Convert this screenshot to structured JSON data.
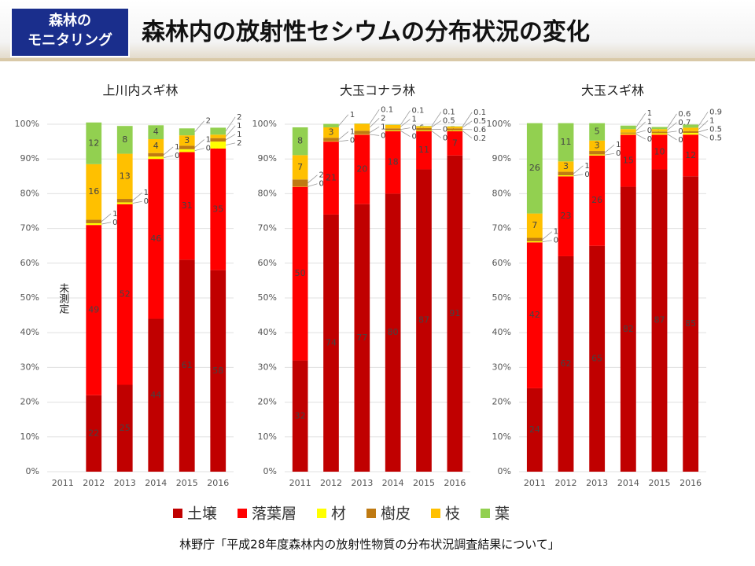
{
  "header": {
    "badge": [
      "森林の",
      "モニタリング"
    ],
    "title": "森林内の放射性セシウムの分布状況の変化"
  },
  "source": "林野庁「平成28年度森林内の放射性物質の分布状況調査結果について」",
  "chart_data": [
    {
      "type": "bar",
      "stacked": true,
      "title": "上川内スギ林",
      "annotation": "未測定",
      "categories": [
        "2011",
        "2012",
        "2013",
        "2014",
        "2015",
        "2016"
      ],
      "ylim": [
        0,
        100
      ],
      "yticks": [
        {
          "value": 0,
          "label": "0%"
        },
        {
          "value": 10,
          "label": "10%"
        },
        {
          "value": 20,
          "label": "20%"
        },
        {
          "value": 30,
          "label": "30%"
        },
        {
          "value": 40,
          "label": "40%"
        },
        {
          "value": 50,
          "label": "50%"
        },
        {
          "value": 60,
          "label": "60%"
        },
        {
          "value": 70,
          "label": "70%"
        },
        {
          "value": 80,
          "label": "80%"
        },
        {
          "value": 90,
          "label": "90%"
        },
        {
          "value": 100,
          "label": "100%"
        }
      ],
      "series": [
        {
          "name": "土壌",
          "color": "#c00000",
          "values": [
            null,
            22,
            25,
            44,
            61,
            58
          ]
        },
        {
          "name": "落葉層",
          "color": "#ff0000",
          "values": [
            null,
            49,
            52,
            46,
            31,
            35
          ]
        },
        {
          "name": "材",
          "color": "#ffff00",
          "values": [
            null,
            0.5,
            0.5,
            0.7,
            0.8,
            2
          ]
        },
        {
          "name": "樹皮",
          "color": "#bf7a12",
          "values": [
            null,
            1,
            1,
            1,
            1,
            1
          ]
        },
        {
          "name": "枝",
          "color": "#ffc000",
          "values": [
            null,
            16,
            13,
            4,
            3,
            1
          ]
        },
        {
          "name": "葉",
          "color": "#92d050",
          "values": [
            null,
            12,
            8,
            4,
            2,
            2
          ]
        }
      ]
    },
    {
      "type": "bar",
      "stacked": true,
      "title": "大玉コナラ林",
      "categories": [
        "2011",
        "2012",
        "2013",
        "2014",
        "2015",
        "2016"
      ],
      "ylim": [
        0,
        100
      ],
      "yticks": [
        {
          "value": 0,
          "label": "0%"
        },
        {
          "value": 10,
          "label": "10%"
        },
        {
          "value": 20,
          "label": "20%"
        },
        {
          "value": 30,
          "label": "30%"
        },
        {
          "value": 40,
          "label": "40%"
        },
        {
          "value": 50,
          "label": "50%"
        },
        {
          "value": 60,
          "label": "60%"
        },
        {
          "value": 70,
          "label": "70%"
        },
        {
          "value": 80,
          "label": "80%"
        },
        {
          "value": 90,
          "label": "90%"
        },
        {
          "value": 100,
          "label": "100%"
        }
      ],
      "series": [
        {
          "name": "土壌",
          "color": "#c00000",
          "values": [
            32,
            74,
            77,
            80,
            87,
            91
          ]
        },
        {
          "name": "落葉層",
          "color": "#ff0000",
          "values": [
            50,
            21,
            20,
            18,
            11,
            7
          ]
        },
        {
          "name": "材",
          "color": "#ffff00",
          "values": [
            0.1,
            0.1,
            0.1,
            0.2,
            0.2,
            0.2
          ]
        },
        {
          "name": "樹皮",
          "color": "#bf7a12",
          "values": [
            2,
            1,
            1,
            0.6,
            0.7,
            0.6
          ]
        },
        {
          "name": "枝",
          "color": "#ffc000",
          "values": [
            7,
            3,
            2,
            1,
            0.5,
            0.5
          ]
        },
        {
          "name": "葉",
          "color": "#92d050",
          "values": [
            8,
            1,
            0.1,
            0.1,
            0.1,
            0.1
          ]
        }
      ]
    },
    {
      "type": "bar",
      "stacked": true,
      "title": "大玉スギ林",
      "categories": [
        "2011",
        "2012",
        "2013",
        "2014",
        "2015",
        "2016"
      ],
      "ylim": [
        0,
        100
      ],
      "yticks": [
        {
          "value": 0,
          "label": "0%"
        },
        {
          "value": 10,
          "label": "10%"
        },
        {
          "value": 20,
          "label": "20%"
        },
        {
          "value": 30,
          "label": "30%"
        },
        {
          "value": 40,
          "label": "40%"
        },
        {
          "value": 50,
          "label": "50%"
        },
        {
          "value": 60,
          "label": "60%"
        },
        {
          "value": 70,
          "label": "70%"
        },
        {
          "value": 80,
          "label": "80%"
        },
        {
          "value": 90,
          "label": "90%"
        },
        {
          "value": 100,
          "label": "100%"
        }
      ],
      "series": [
        {
          "name": "土壌",
          "color": "#c00000",
          "values": [
            24,
            62,
            65,
            82,
            87,
            85
          ]
        },
        {
          "name": "落葉層",
          "color": "#ff0000",
          "values": [
            42,
            23,
            26,
            15,
            10,
            12
          ]
        },
        {
          "name": "材",
          "color": "#ffff00",
          "values": [
            0.3,
            0.3,
            0.3,
            0.3,
            0.4,
            0.5
          ]
        },
        {
          "name": "樹皮",
          "color": "#bf7a12",
          "values": [
            1,
            1,
            1,
            0.3,
            0.5,
            0.5
          ]
        },
        {
          "name": "枝",
          "color": "#ffc000",
          "values": [
            7,
            3,
            3,
            1,
            0.7,
            1
          ]
        },
        {
          "name": "葉",
          "color": "#92d050",
          "values": [
            26,
            11,
            5,
            1,
            0.6,
            0.9
          ]
        }
      ]
    }
  ]
}
